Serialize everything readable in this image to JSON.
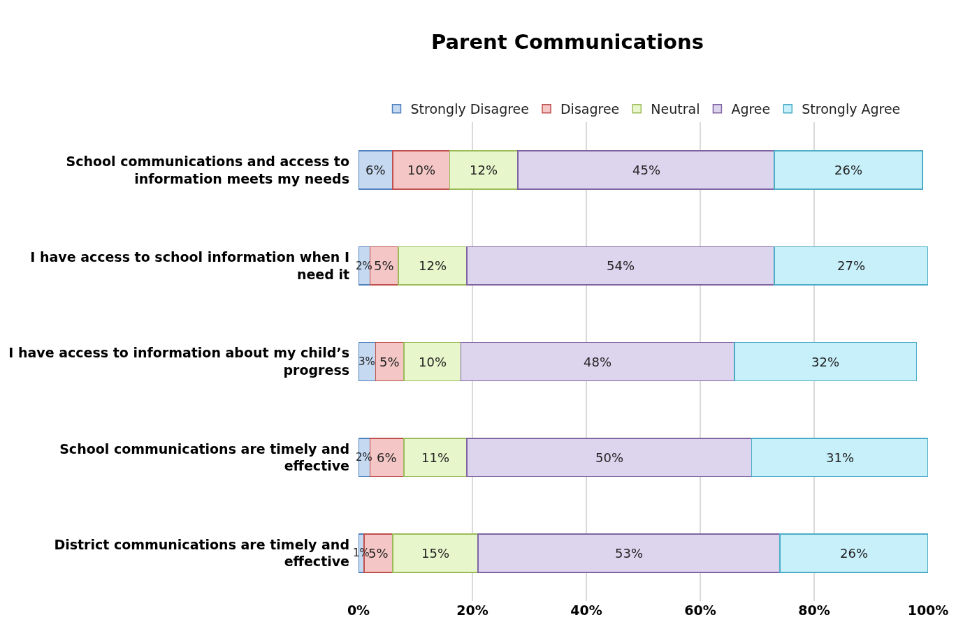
{
  "chart_data": {
    "type": "bar",
    "orientation": "horizontal",
    "stacked": true,
    "title": "Parent Communications",
    "categories": [
      "School communications and access to information meets my needs",
      "I have access to school information when I need it",
      "I have access to information about my child’s progress",
      "School communications are timely and effective",
      "District communications are timely and effective"
    ],
    "series": [
      {
        "name": "Strongly Disagree",
        "color": "#c5d9f1",
        "values": [
          6,
          2,
          3,
          2,
          1
        ],
        "value_labels": [
          "6%",
          "2%",
          "3%",
          "2%",
          "1%"
        ]
      },
      {
        "name": "Disagree",
        "color": "#f4c7c6",
        "values": [
          10,
          5,
          5,
          6,
          5
        ],
        "value_labels": [
          "10%",
          "5%",
          "5%",
          "6%",
          "5%"
        ]
      },
      {
        "name": "Neutral",
        "color": "#e7f6cb",
        "values": [
          12,
          12,
          10,
          11,
          15
        ],
        "value_labels": [
          "12%",
          "12%",
          "10%",
          "11%",
          "15%"
        ]
      },
      {
        "name": "Agree",
        "color": "#ddd4ee",
        "values": [
          45,
          54,
          48,
          50,
          53
        ],
        "value_labels": [
          "45%",
          "54%",
          "48%",
          "50%",
          "53%"
        ]
      },
      {
        "name": "Strongly Agree",
        "color": "#c8f0fb",
        "values": [
          26,
          27,
          32,
          31,
          26
        ],
        "value_labels": [
          "26%",
          "27%",
          "32%",
          "31%",
          "26%"
        ]
      }
    ],
    "xlim": [
      0,
      100
    ],
    "xticks": [
      {
        "value": 0,
        "label": "0%"
      },
      {
        "value": 20,
        "label": "20%"
      },
      {
        "value": 40,
        "label": "40%"
      },
      {
        "value": 60,
        "label": "60%"
      },
      {
        "value": 80,
        "label": "80%"
      },
      {
        "value": 100,
        "label": "100%"
      }
    ],
    "grid": "x",
    "legend": "top"
  }
}
